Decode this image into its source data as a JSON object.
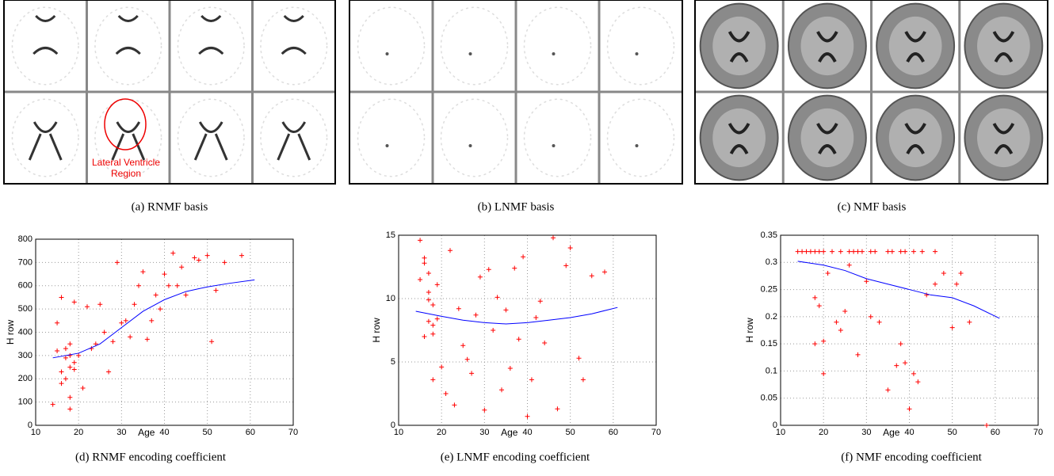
{
  "figures": [
    {
      "caption": "(a)  RNMF basis",
      "annotation": "Lateral Ventricle Region"
    },
    {
      "caption": "(b)  LNMF basis"
    },
    {
      "caption": "(c)  NMF basis"
    }
  ],
  "chart_data": [
    {
      "type": "scatter",
      "caption": "(d)  RNMF encoding coefficient",
      "xlabel": "Age",
      "ylabel": "H row",
      "xlim": [
        10,
        70
      ],
      "xticks": [
        10,
        20,
        30,
        40,
        50,
        60,
        70
      ],
      "ylim": [
        0,
        800
      ],
      "yticks": [
        0,
        100,
        200,
        300,
        400,
        500,
        600,
        700,
        800
      ],
      "grid": true,
      "point_color": "#ff0000",
      "line_color": "#0000ff",
      "points": {
        "x": [
          14,
          15,
          15,
          16,
          16,
          17,
          17,
          17,
          18,
          18,
          18,
          18,
          19,
          19,
          20,
          21,
          22,
          23,
          24,
          25,
          26,
          27,
          28,
          29,
          30,
          31,
          32,
          33,
          34,
          35,
          36,
          37,
          38,
          39,
          40,
          41,
          42,
          43,
          44,
          45,
          47,
          48,
          50,
          51,
          52,
          54,
          58,
          16,
          19,
          18
        ],
        "y": [
          90,
          440,
          320,
          180,
          550,
          200,
          290,
          330,
          250,
          350,
          300,
          70,
          270,
          240,
          300,
          160,
          510,
          330,
          350,
          520,
          400,
          230,
          360,
          700,
          440,
          450,
          380,
          520,
          600,
          660,
          370,
          450,
          560,
          500,
          650,
          600,
          740,
          600,
          680,
          560,
          720,
          710,
          730,
          360,
          580,
          700,
          730,
          230,
          530,
          120
        ]
      },
      "curve": {
        "x": [
          14,
          20,
          25,
          30,
          35,
          40,
          45,
          50,
          55,
          61
        ],
        "y": [
          290,
          310,
          350,
          420,
          490,
          540,
          575,
          595,
          610,
          625
        ]
      }
    },
    {
      "type": "scatter",
      "caption": "(e)  LNMF encoding coefficient",
      "xlabel": "Age",
      "ylabel": "H row",
      "xlim": [
        10,
        70
      ],
      "xticks": [
        10,
        20,
        30,
        40,
        50,
        60,
        70
      ],
      "ylim": [
        0,
        15
      ],
      "yticks": [
        0,
        5,
        10,
        15
      ],
      "grid": true,
      "point_color": "#ff0000",
      "line_color": "#0000ff",
      "points": {
        "x": [
          15,
          15,
          16,
          16,
          17,
          17,
          17,
          18,
          18,
          18,
          19,
          19,
          20,
          21,
          22,
          23,
          24,
          25,
          26,
          27,
          28,
          29,
          30,
          31,
          32,
          33,
          34,
          35,
          36,
          37,
          38,
          39,
          40,
          41,
          42,
          43,
          44,
          46,
          47,
          49,
          50,
          52,
          53,
          55,
          58,
          18,
          17,
          16
        ],
        "y": [
          14.6,
          11.5,
          13.2,
          7,
          12,
          8.2,
          10.5,
          9.5,
          3.6,
          7.9,
          11.1,
          8.4,
          4.6,
          2.5,
          13.8,
          1.6,
          9.2,
          6.3,
          5.2,
          4.1,
          8.7,
          11.7,
          1.2,
          12.3,
          7.5,
          10.1,
          2.8,
          9.1,
          4.5,
          12.4,
          6.8,
          13.3,
          0.7,
          3.6,
          8.5,
          9.8,
          6.5,
          14.8,
          1.3,
          12.6,
          14,
          5.3,
          3.6,
          11.8,
          12.1,
          7.2,
          9.9,
          12.8
        ]
      },
      "curve": {
        "x": [
          14,
          20,
          25,
          30,
          35,
          40,
          45,
          50,
          55,
          61
        ],
        "y": [
          9,
          8.6,
          8.3,
          8.1,
          8.0,
          8.1,
          8.3,
          8.5,
          8.8,
          9.3
        ]
      }
    },
    {
      "type": "scatter",
      "caption": "(f)  NMF encoding coefficient",
      "xlabel": "Age",
      "ylabel": "H row",
      "xlim": [
        10,
        70
      ],
      "xticks": [
        10,
        20,
        30,
        40,
        50,
        60,
        70
      ],
      "ylim": [
        0,
        0.35
      ],
      "yticks": [
        0,
        0.05,
        0.1,
        0.15,
        0.2,
        0.25,
        0.3,
        0.35
      ],
      "grid": true,
      "point_color": "#ff0000",
      "line_color": "#0000ff",
      "points": {
        "x": [
          14,
          15,
          16,
          17,
          18,
          19,
          20,
          22,
          24,
          26,
          27,
          28,
          29,
          31,
          32,
          35,
          36,
          38,
          39,
          41,
          43,
          46,
          18,
          18,
          19,
          20,
          20,
          21,
          23,
          24,
          25,
          26,
          28,
          30,
          31,
          33,
          35,
          37,
          38,
          39,
          40,
          41,
          42,
          44,
          46,
          48,
          50,
          51,
          52,
          54,
          58
        ],
        "y": [
          0.32,
          0.32,
          0.32,
          0.32,
          0.32,
          0.32,
          0.32,
          0.32,
          0.32,
          0.32,
          0.32,
          0.32,
          0.32,
          0.32,
          0.32,
          0.32,
          0.32,
          0.32,
          0.32,
          0.32,
          0.32,
          0.32,
          0.235,
          0.15,
          0.22,
          0.095,
          0.155,
          0.28,
          0.19,
          0.175,
          0.21,
          0.295,
          0.13,
          0.265,
          0.2,
          0.19,
          0.065,
          0.11,
          0.15,
          0.115,
          0.03,
          0.095,
          0.08,
          0.24,
          0.26,
          0.28,
          0.18,
          0.26,
          0.28,
          0.19,
          0.0
        ]
      },
      "curve": {
        "x": [
          14,
          20,
          25,
          30,
          35,
          40,
          45,
          50,
          55,
          61
        ],
        "y": [
          0.302,
          0.295,
          0.285,
          0.27,
          0.26,
          0.25,
          0.24,
          0.235,
          0.22,
          0.197
        ]
      }
    }
  ]
}
